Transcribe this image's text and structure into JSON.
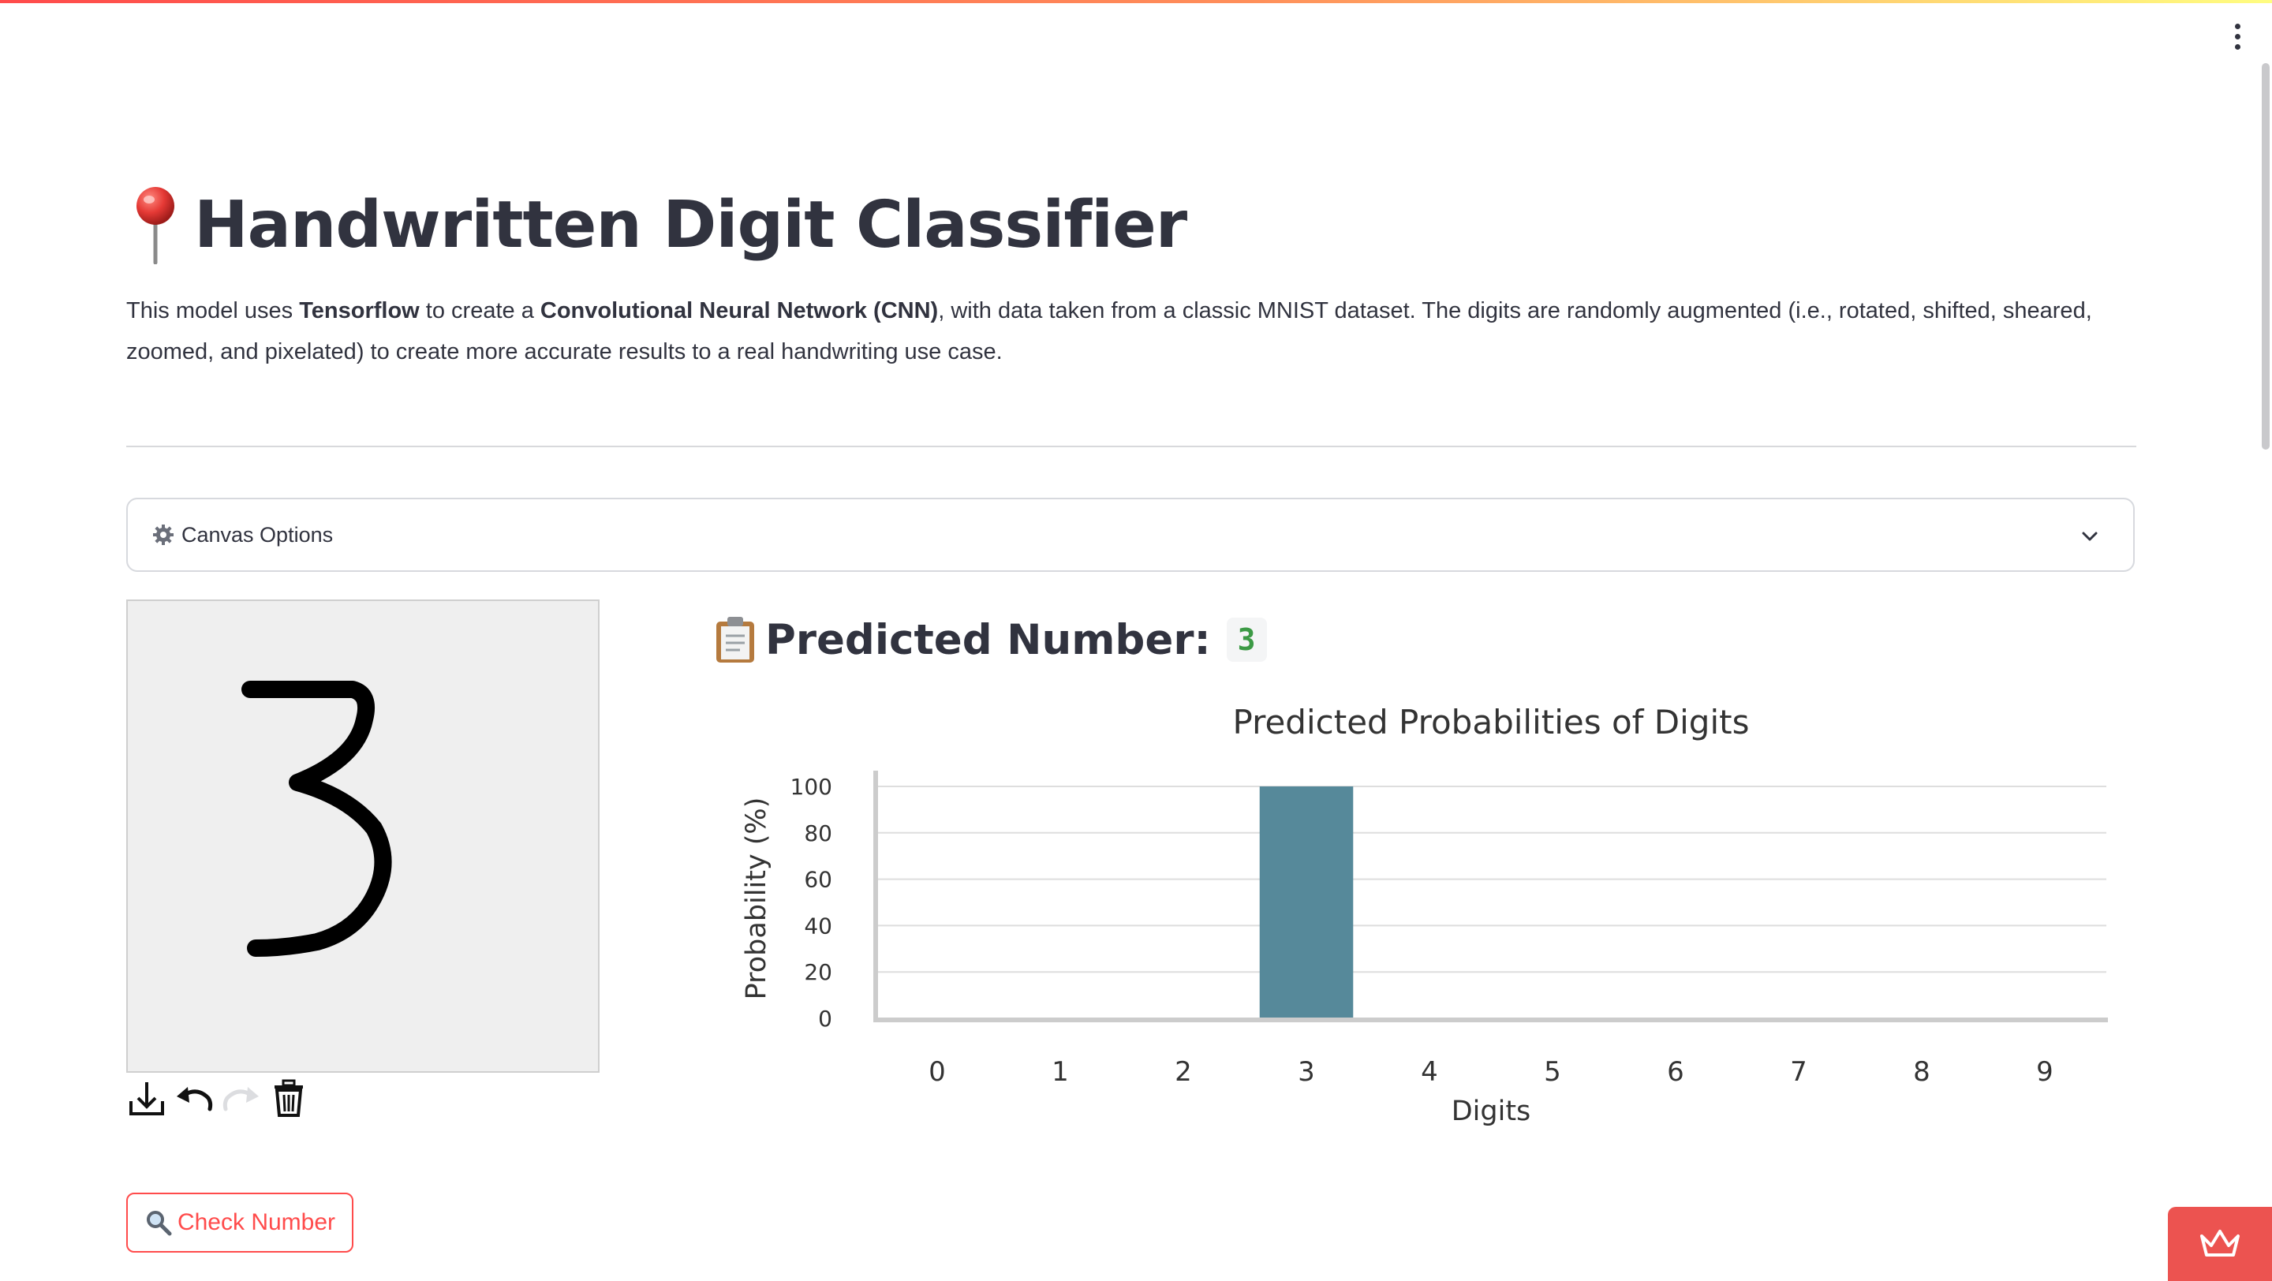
{
  "header": {
    "title": "Handwritten Digit Classifier",
    "title_icon": "round-pushpin-icon",
    "menu_icon": "vertical-ellipsis-icon"
  },
  "description": {
    "part1": "This model uses ",
    "bold1": "Tensorflow",
    "part2": " to create a ",
    "bold2": "Convolutional Neural Network (CNN)",
    "part3": ", with data taken from a classic MNIST dataset. The digits are randomly augmented (i.e., rotated, shifted, sheared, zoomed, and pixelated) to create more accurate results to a real handwriting use case."
  },
  "expander": {
    "label": "Canvas Options",
    "icon": "gear-icon",
    "expanded": false
  },
  "canvas": {
    "drawn_digit": "3",
    "background_color": "#efefef",
    "stroke_color": "#000000",
    "toolbar": [
      "download-icon",
      "undo-icon",
      "redo-icon",
      "trash-icon"
    ]
  },
  "check_button": {
    "label": "Check Number",
    "icon": "magnifier-icon"
  },
  "prediction": {
    "label": "Predicted Number:",
    "value": "3",
    "icon": "clipboard-icon",
    "value_color": "#3c9a45"
  },
  "chart_data": {
    "type": "bar",
    "title": "Predicted Probabilities of Digits",
    "xlabel": "Digits",
    "ylabel": "Probability (%)",
    "categories": [
      "0",
      "1",
      "2",
      "3",
      "4",
      "5",
      "6",
      "7",
      "8",
      "9"
    ],
    "values": [
      0,
      0,
      0,
      100,
      0,
      0,
      0,
      0,
      0,
      0
    ],
    "ylim": [
      0,
      100
    ],
    "yticks": [
      0,
      20,
      40,
      60,
      80,
      100
    ],
    "grid": true,
    "bar_color": "#56899a"
  },
  "colors": {
    "accent": "#ff4b4b",
    "text": "#31333f",
    "badge": "#ec5350"
  },
  "corner_badge": {
    "icon": "crown-icon"
  }
}
